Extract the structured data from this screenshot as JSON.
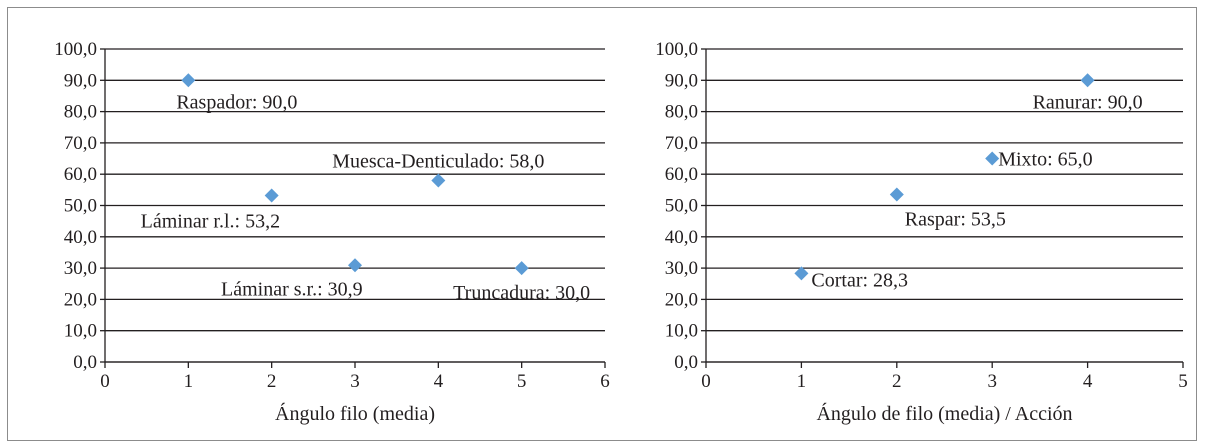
{
  "chart_data": [
    {
      "type": "scatter",
      "title": "",
      "xlabel": "Ángulo filo (media)",
      "ylabel": "",
      "xlim": [
        0,
        6
      ],
      "ylim": [
        0,
        100
      ],
      "x_ticks": [
        "0",
        "1",
        "2",
        "3",
        "4",
        "5",
        "6"
      ],
      "y_ticks": [
        "0,0",
        "10,0",
        "20,0",
        "30,0",
        "40,0",
        "50,0",
        "60,0",
        "70,0",
        "80,0",
        "90,0",
        "100,0"
      ],
      "grid": "horizontal",
      "marker": "diamond",
      "marker_color": "#5b9bd5",
      "points": [
        {
          "x": 1,
          "y": 90.0,
          "label": "Raspador: 90,0",
          "label_position": "below-right"
        },
        {
          "x": 2,
          "y": 53.2,
          "label": "Láminar r.l.: 53,2",
          "label_position": "below-left"
        },
        {
          "x": 3,
          "y": 30.9,
          "label": "Láminar s.r.: 30,9",
          "label_position": "below-left"
        },
        {
          "x": 4,
          "y": 58.0,
          "label": "Muesca-Denticulado: 58,0",
          "label_position": "above"
        },
        {
          "x": 5,
          "y": 30.0,
          "label": "Truncadura: 30,0",
          "label_position": "below"
        }
      ]
    },
    {
      "type": "scatter",
      "title": "",
      "xlabel": "Ángulo de filo (media) / Acción",
      "ylabel": "",
      "xlim": [
        0,
        5
      ],
      "ylim": [
        0,
        100
      ],
      "x_ticks": [
        "0",
        "1",
        "2",
        "3",
        "4",
        "5"
      ],
      "y_ticks": [
        "0,0",
        "10,0",
        "20,0",
        "30,0",
        "40,0",
        "50,0",
        "60,0",
        "70,0",
        "80,0",
        "90,0",
        "100,0"
      ],
      "grid": "horizontal",
      "marker": "diamond",
      "marker_color": "#5b9bd5",
      "points": [
        {
          "x": 1,
          "y": 28.3,
          "label": "Cortar: 28,3",
          "label_position": "right"
        },
        {
          "x": 2,
          "y": 53.5,
          "label": "Raspar: 53,5",
          "label_position": "below-right"
        },
        {
          "x": 3,
          "y": 65.0,
          "label": "Mixto: 65,0",
          "label_position": "right"
        },
        {
          "x": 4,
          "y": 90.0,
          "label": "Ranurar: 90,0",
          "label_position": "below"
        }
      ]
    }
  ]
}
